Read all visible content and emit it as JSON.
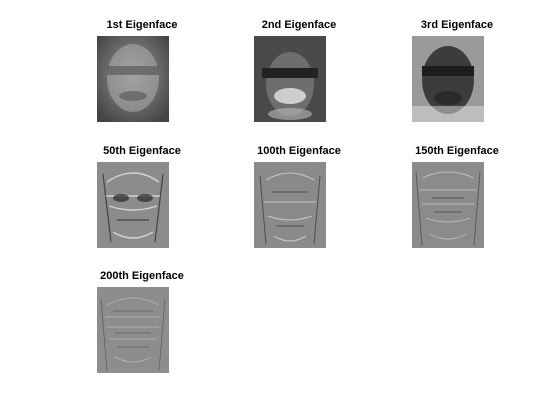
{
  "panels": [
    {
      "title": "1st Eigenface",
      "base_gray": "#8a8a8a"
    },
    {
      "title": "2nd Eigenface",
      "base_gray": "#6e6e6e"
    },
    {
      "title": "3rd Eigenface",
      "base_gray": "#7a7a7a"
    },
    {
      "title": "50th Eigenface",
      "base_gray": "#9a9a9a"
    },
    {
      "title": "100th Eigenface",
      "base_gray": "#8e8e8e"
    },
    {
      "title": "150th Eigenface",
      "base_gray": "#8a8a8a"
    },
    {
      "title": "200th Eigenface",
      "base_gray": "#8c8c8c"
    }
  ]
}
